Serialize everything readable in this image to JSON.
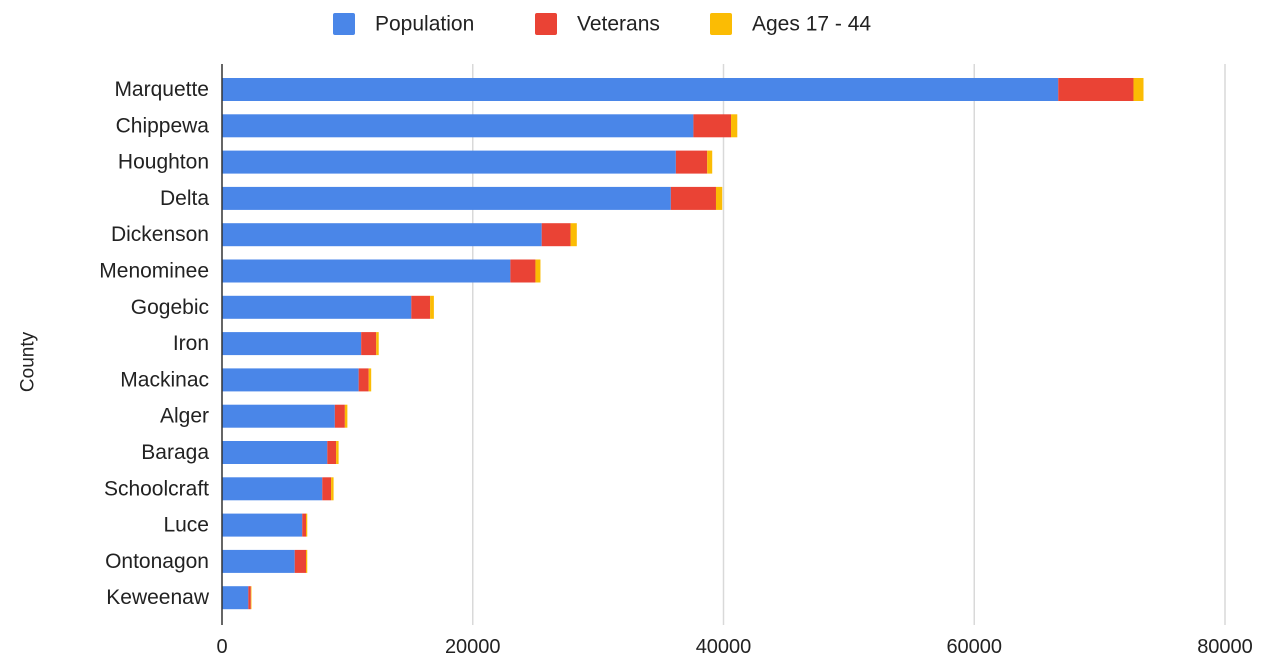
{
  "chart_data": {
    "type": "bar",
    "orientation": "horizontal",
    "stacked": true,
    "title": "",
    "xlabel": "",
    "ylabel": "County",
    "xlim": [
      0,
      80000
    ],
    "x_ticks": [
      "0",
      "20000",
      "40000",
      "60000",
      "80000"
    ],
    "x_tick_values": [
      0,
      20000,
      40000,
      60000,
      80000
    ],
    "grid": "vertical",
    "legend_position": "top",
    "categories": [
      "Marquette",
      "Chippewa",
      "Houghton",
      "Delta",
      "Dickenson",
      "Menominee",
      "Gogebic",
      "Iron",
      "Mackinac",
      "Alger",
      "Baraga",
      "Schoolcraft",
      "Luce",
      "Ontonagon",
      "Keweenaw"
    ],
    "series": [
      {
        "name": "Population",
        "color": "#4a86e8",
        "values": [
          66700,
          37600,
          36200,
          35800,
          25500,
          23000,
          15100,
          11100,
          10900,
          9000,
          8400,
          8000,
          6400,
          5800,
          2100
        ]
      },
      {
        "name": "Veterans",
        "color": "#ea4335",
        "values": [
          6000,
          3000,
          2500,
          3600,
          2300,
          2000,
          1500,
          1200,
          800,
          800,
          700,
          700,
          300,
          900,
          200
        ]
      },
      {
        "name": "Ages 17 - 44",
        "color": "#fbbc04",
        "values": [
          800,
          500,
          400,
          500,
          500,
          400,
          300,
          200,
          200,
          200,
          200,
          200,
          100,
          100,
          50
        ]
      }
    ]
  }
}
